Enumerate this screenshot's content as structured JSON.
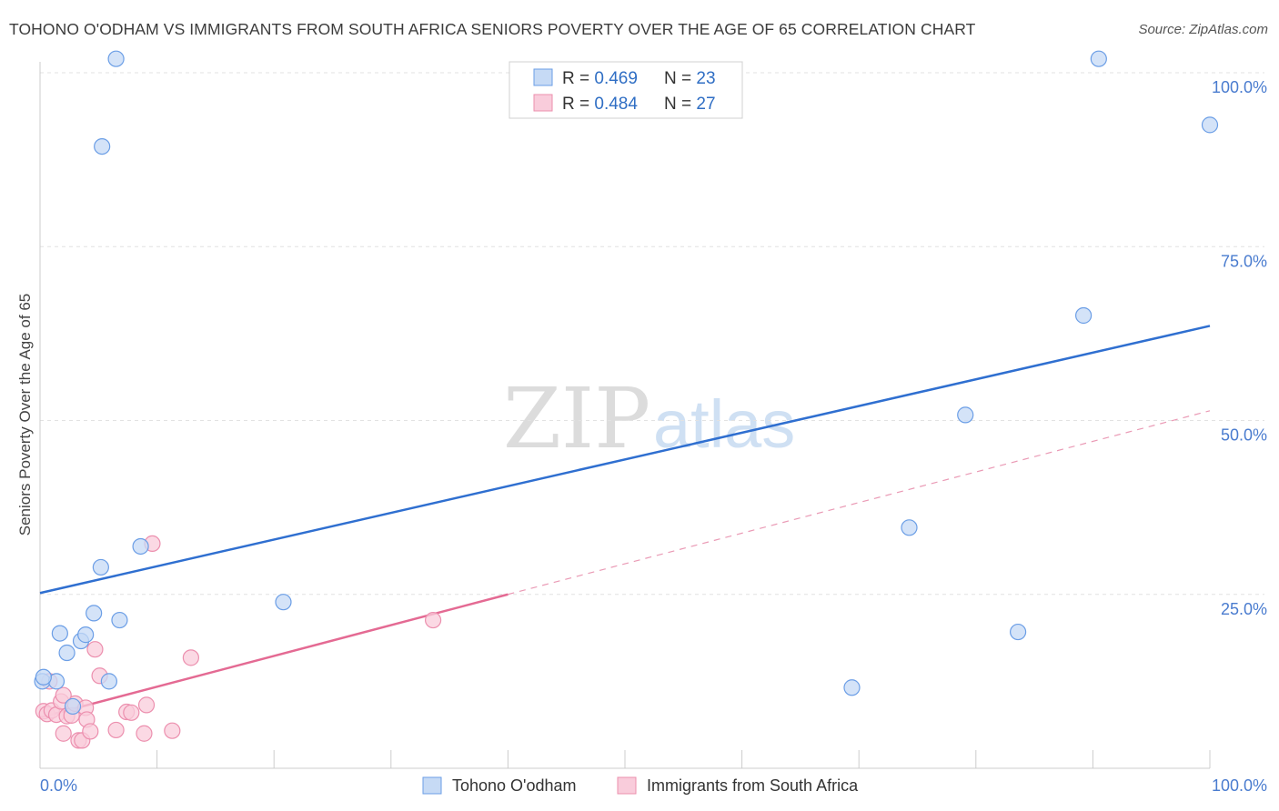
{
  "header": {
    "title": "TOHONO O'ODHAM VS IMMIGRANTS FROM SOUTH AFRICA SENIORS POVERTY OVER THE AGE OF 65 CORRELATION CHART",
    "source": "Source: ZipAtlas.com"
  },
  "watermark": {
    "zip": "ZIP",
    "atlas": "atlas"
  },
  "legend": {
    "rows": [
      {
        "r_label": "R = ",
        "r_value": "0.469",
        "n_label": "N = ",
        "n_value": "23"
      },
      {
        "r_label": "R = ",
        "r_value": "0.484",
        "n_label": "N = ",
        "n_value": "27"
      }
    ]
  },
  "chart_data": {
    "type": "scatter",
    "title": "TOHONO O'ODHAM VS IMMIGRANTS FROM SOUTH AFRICA SENIORS POVERTY OVER THE AGE OF 65 CORRELATION CHART",
    "xlabel": "",
    "ylabel": "Seniors Poverty Over the Age of 65",
    "xlim": [
      0,
      100
    ],
    "ylim": [
      0,
      100
    ],
    "x_tick_labels": [
      "0.0%",
      "100.0%"
    ],
    "y_tick_labels": [
      "25.0%",
      "50.0%",
      "75.0%",
      "100.0%"
    ],
    "y_tick_values": [
      25,
      50,
      75,
      100
    ],
    "grid": true,
    "legend_position": "top-center",
    "series": [
      {
        "name": "Tohono O'odham",
        "color": "#6b9ee6",
        "fill": "#c6daf5",
        "r": 0.469,
        "n": 23,
        "trend": {
          "x": [
            0,
            100
          ],
          "y": [
            25.2,
            63.6
          ],
          "style": "solid"
        },
        "points": [
          [
            6.5,
            102.0
          ],
          [
            5.3,
            89.4
          ],
          [
            0.2,
            12.5
          ],
          [
            1.4,
            12.5
          ],
          [
            1.7,
            19.4
          ],
          [
            2.3,
            16.6
          ],
          [
            3.5,
            18.3
          ],
          [
            3.9,
            19.2
          ],
          [
            4.6,
            22.3
          ],
          [
            5.2,
            28.9
          ],
          [
            5.9,
            12.5
          ],
          [
            6.8,
            21.3
          ],
          [
            8.6,
            31.9
          ],
          [
            20.8,
            23.9
          ],
          [
            2.8,
            8.9
          ],
          [
            69.4,
            11.6
          ],
          [
            74.3,
            34.6
          ],
          [
            79.1,
            50.8
          ],
          [
            83.6,
            19.6
          ],
          [
            89.2,
            65.1
          ],
          [
            90.5,
            102.0
          ],
          [
            100.0,
            92.5
          ],
          [
            0.3,
            13.1
          ]
        ]
      },
      {
        "name": "Immigrants from South Africa",
        "color": "#ec8fae",
        "fill": "#f9ccdb",
        "r": 0.484,
        "n": 27,
        "trend_solid": {
          "x": [
            0,
            40
          ],
          "y": [
            7.3,
            25.0
          ],
          "style": "solid"
        },
        "trend_dashed": {
          "x": [
            40,
            100
          ],
          "y": [
            25.0,
            51.4
          ],
          "style": "dashed"
        },
        "points": [
          [
            0.3,
            8.2
          ],
          [
            0.6,
            7.8
          ],
          [
            1.0,
            8.3
          ],
          [
            1.4,
            7.7
          ],
          [
            1.8,
            9.6
          ],
          [
            2.0,
            5.0
          ],
          [
            2.3,
            7.5
          ],
          [
            2.7,
            7.6
          ],
          [
            3.0,
            9.3
          ],
          [
            3.3,
            4.0
          ],
          [
            3.6,
            4.0
          ],
          [
            3.9,
            8.7
          ],
          [
            4.0,
            7.0
          ],
          [
            4.3,
            5.3
          ],
          [
            4.7,
            17.1
          ],
          [
            5.1,
            13.3
          ],
          [
            6.5,
            5.5
          ],
          [
            7.4,
            8.1
          ],
          [
            7.8,
            8.0
          ],
          [
            8.9,
            5.0
          ],
          [
            9.1,
            9.1
          ],
          [
            11.3,
            5.4
          ],
          [
            9.6,
            32.3
          ],
          [
            12.9,
            15.9
          ],
          [
            33.6,
            21.3
          ],
          [
            0.8,
            12.5
          ],
          [
            2.0,
            10.5
          ]
        ]
      }
    ]
  }
}
